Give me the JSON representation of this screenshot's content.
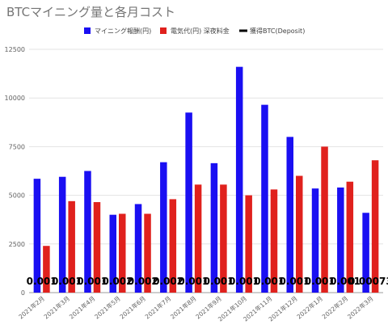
{
  "chart_data": {
    "type": "bar",
    "title": "BTCマイニング量と各月コスト",
    "legend_position": "top",
    "categories": [
      "2021年2月",
      "2021年3月",
      "2021年4月",
      "2021年5月",
      "2021年6月",
      "2021年7月",
      "2021年8月",
      "2021年9月",
      "2021年10月",
      "2021年11月",
      "2021年12月",
      "2022年1月",
      "2022年2月",
      "2022年3月"
    ],
    "ylim": [
      0,
      12500
    ],
    "yticks": [
      0,
      2500,
      5000,
      7500,
      10000,
      12500
    ],
    "grid": true,
    "series": [
      {
        "name": "マイニング報酬(円)",
        "color": "#1a0ff2",
        "values": [
          5850,
          5950,
          6250,
          4000,
          4550,
          6700,
          9250,
          6650,
          11600,
          9650,
          8000,
          5350,
          5400,
          4100
        ]
      },
      {
        "name": "電気代(円) 深夜料金",
        "color": "#e0211d",
        "values": [
          2400,
          4700,
          4650,
          4050,
          4050,
          4800,
          5550,
          5550,
          5000,
          5300,
          6000,
          7500,
          5700,
          6800
        ]
      },
      {
        "name": "獲得BTC(Deposit)",
        "color": "#000000",
        "type": "label",
        "labels": [
          "0.001",
          "0.001",
          "0.001",
          "0.002",
          "0.002",
          "0.002",
          "0.001",
          "0.001",
          "0.001",
          "0.001",
          "0.001",
          "0.001",
          "0.001",
          "0.00073"
        ]
      }
    ]
  }
}
